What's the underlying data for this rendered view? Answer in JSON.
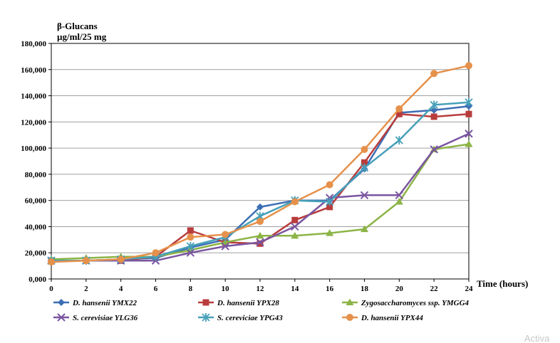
{
  "chart_data": {
    "type": "line",
    "ylabel_line1": "β-Glucans",
    "ylabel_line2": "µg/ml/25 mg",
    "xlabel": "Time (hours)",
    "x": [
      0,
      2,
      4,
      6,
      8,
      10,
      12,
      14,
      16,
      18,
      20,
      22,
      24
    ],
    "x_ticks": [
      "0",
      "2",
      "4",
      "6",
      "8",
      "10",
      "12",
      "14",
      "16",
      "18",
      "20",
      "22",
      "24"
    ],
    "y_ticks": [
      "0,000",
      "20,000",
      "40,000",
      "60,000",
      "80,000",
      "100,000",
      "120,000",
      "140,000",
      "160,000",
      "180,000"
    ],
    "ylim": [
      0,
      180000
    ],
    "xlim": [
      0,
      24
    ],
    "grid": "horizontal",
    "legend_position": "bottom",
    "series": [
      {
        "name": "D. hansenii YMX22",
        "color": "#3c6eb4",
        "marker": "diamond",
        "values": [
          14000,
          14000,
          15000,
          16000,
          24000,
          30000,
          55000,
          60000,
          60000,
          84000,
          127000,
          129000,
          132000
        ]
      },
      {
        "name": "D. hansenii YPX28",
        "color": "#b93c3c",
        "marker": "square",
        "values": [
          14000,
          14000,
          14000,
          17000,
          37000,
          28000,
          27000,
          45000,
          55000,
          89000,
          126000,
          124000,
          126000
        ]
      },
      {
        "name": "Zygosaccharomyces ssp. YMGG4",
        "color": "#8cb446",
        "marker": "triangle",
        "values": [
          15000,
          16000,
          17000,
          17000,
          22000,
          28000,
          33000,
          33000,
          35000,
          38000,
          59000,
          99000,
          103000
        ]
      },
      {
        "name": "S. cerevisiae YLG36",
        "color": "#7a55a0",
        "marker": "x",
        "values": [
          14000,
          14000,
          14000,
          14000,
          20000,
          25000,
          28000,
          40000,
          62000,
          64000,
          64000,
          99000,
          111000
        ]
      },
      {
        "name": "S. cereviciae YPG43",
        "color": "#46a0b9",
        "marker": "star",
        "values": [
          14000,
          14000,
          15000,
          17000,
          25000,
          32000,
          48000,
          60000,
          59000,
          85000,
          106000,
          133000,
          135000
        ]
      },
      {
        "name": "D. hansenii YPX44",
        "color": "#e6914b",
        "marker": "circle",
        "values": [
          13000,
          14000,
          15000,
          20000,
          32000,
          34000,
          44000,
          59000,
          72000,
          99000,
          130000,
          157000,
          163000
        ]
      }
    ]
  },
  "watermark": "Activa"
}
